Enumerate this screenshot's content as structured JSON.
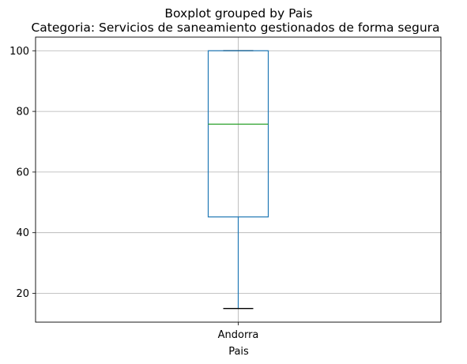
{
  "chart_data": {
    "type": "box",
    "suptitle": "Boxplot grouped by Pais",
    "title": "Categoria: Servicios de saneamiento gestionados de forma segura",
    "xlabel": "Pais",
    "ylabel": "",
    "categories": [
      "Andorra"
    ],
    "boxes": [
      {
        "category": "Andorra",
        "whisker_low": 15.0,
        "q1": 45.2,
        "median": 75.8,
        "q3": 100.0,
        "whisker_high": 100.0
      }
    ],
    "ylim": [
      10.5,
      104.5
    ],
    "yticks": [
      20,
      40,
      60,
      80,
      100
    ],
    "grid": true,
    "colors": {
      "box": "#1f77b4",
      "median": "#2ca02c",
      "whisker": "#1f77b4",
      "cap": "#000000",
      "grid": "#b0b0b0"
    }
  }
}
